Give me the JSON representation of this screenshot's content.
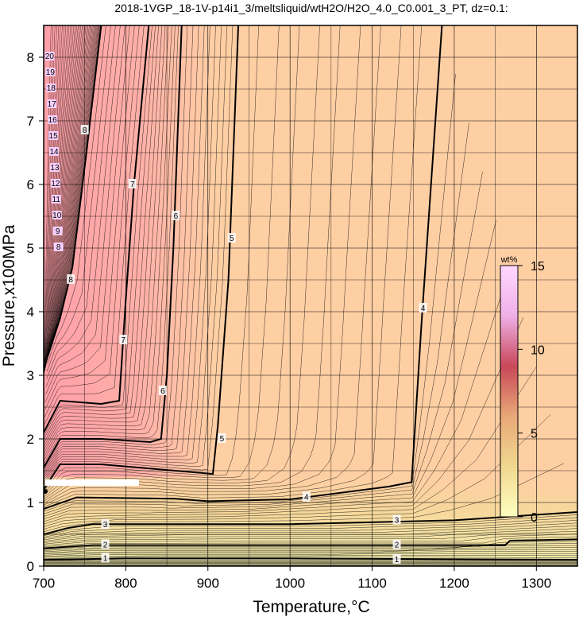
{
  "chart_data": {
    "type": "contour",
    "title": "2018-1VGP_18-1V-p14i1_3/meltsliquid/wtH2O/H2O_4.0_C0.001_3_PT, dz=0.1:",
    "xlabel": "Temperature,°C",
    "ylabel": "Pressure,x100MPa",
    "xlim": [
      700,
      1350
    ],
    "ylim": [
      0,
      8.5
    ],
    "x_ticks": [
      700,
      800,
      900,
      1000,
      1100,
      1200,
      1300
    ],
    "y_ticks": [
      0,
      1,
      2,
      3,
      4,
      5,
      6,
      7,
      8
    ],
    "grid": true,
    "colorbar": {
      "unit": "wt%",
      "range": [
        0,
        15
      ],
      "ticks": [
        0,
        5,
        10,
        15
      ],
      "colors": [
        "#ffffc0",
        "#f0d890",
        "#e8a878",
        "#c84858",
        "#f0b0e8",
        "#ffd8ff"
      ],
      "placement": "right-inside"
    },
    "background_color": "#ffcfa4",
    "contour_interval": 0.1,
    "major_contours": [
      {
        "level": "1",
        "points": [
          [
            700,
            0.1
          ],
          [
            800,
            0.12
          ],
          [
            1000,
            0.12
          ],
          [
            1350,
            0.1
          ]
        ],
        "label_x": [
          775,
          1130
        ],
        "label_y": [
          0.12,
          0.1
        ]
      },
      {
        "level": "2",
        "points": [
          [
            700,
            0.28
          ],
          [
            760,
            0.33
          ],
          [
            1000,
            0.33
          ],
          [
            1262,
            0.33
          ],
          [
            1268,
            0.4
          ],
          [
            1350,
            0.42
          ]
        ],
        "label_x": [
          775,
          1130
        ],
        "label_y": [
          0.33,
          0.33
        ]
      },
      {
        "level": "3",
        "points": [
          [
            700,
            0.5
          ],
          [
            730,
            0.6
          ],
          [
            760,
            0.66
          ],
          [
            1000,
            0.66
          ],
          [
            1200,
            0.72
          ],
          [
            1350,
            0.85
          ]
        ],
        "label_x": [
          775,
          1130
        ],
        "label_y": [
          0.65,
          0.72
        ]
      },
      {
        "level": "4",
        "points": [
          [
            700,
            0.9
          ],
          [
            740,
            1.08
          ],
          [
            860,
            1.06
          ],
          [
            900,
            1.02
          ],
          [
            1000,
            1.05
          ],
          [
            1120,
            1.25
          ],
          [
            1148,
            1.32
          ],
          [
            1160,
            3.8
          ],
          [
            1185,
            8.5
          ]
        ],
        "label_x": [
          1020,
          1162
        ],
        "label_y": [
          1.08,
          4.05
        ]
      },
      {
        "level": "5",
        "points": [
          [
            700,
            1.2
          ],
          [
            720,
            1.6
          ],
          [
            770,
            1.6
          ],
          [
            860,
            1.5
          ],
          [
            906,
            1.45
          ],
          [
            912,
            2.2
          ],
          [
            925,
            4.5
          ],
          [
            937,
            8.5
          ]
        ],
        "label_x": [
          917,
          929
        ],
        "label_y": [
          2.0,
          5.15
        ]
      },
      {
        "level": "6",
        "points": [
          [
            700,
            1.55
          ],
          [
            720,
            2.0
          ],
          [
            770,
            2.0
          ],
          [
            830,
            1.95
          ],
          [
            843,
            2.0
          ],
          [
            850,
            3.0
          ],
          [
            858,
            5.0
          ],
          [
            868,
            8.5
          ]
        ],
        "label_x": [
          845,
          861
        ],
        "label_y": [
          2.75,
          5.5
        ]
      },
      {
        "level": "7",
        "points": [
          [
            700,
            2.1
          ],
          [
            720,
            2.6
          ],
          [
            770,
            2.55
          ],
          [
            792,
            2.6
          ],
          [
            800,
            4.2
          ],
          [
            810,
            6.0
          ],
          [
            828,
            8.5
          ]
        ],
        "label_x": [
          797,
          808
        ],
        "label_y": [
          3.55,
          6.0
        ]
      },
      {
        "level": "8",
        "points": [
          [
            705,
            3.3
          ],
          [
            720,
            3.9
          ],
          [
            735,
            4.7
          ],
          [
            752,
            6.5
          ],
          [
            770,
            8.5
          ]
        ],
        "label_x": [
          733,
          750
        ],
        "label_y": [
          4.5,
          6.85
        ]
      }
    ],
    "steep_contour_labels": [
      "8",
      "9",
      "10",
      "11",
      "12",
      "13",
      "14",
      "15",
      "16",
      "17",
      "18",
      "19",
      "20"
    ],
    "annotations": []
  }
}
